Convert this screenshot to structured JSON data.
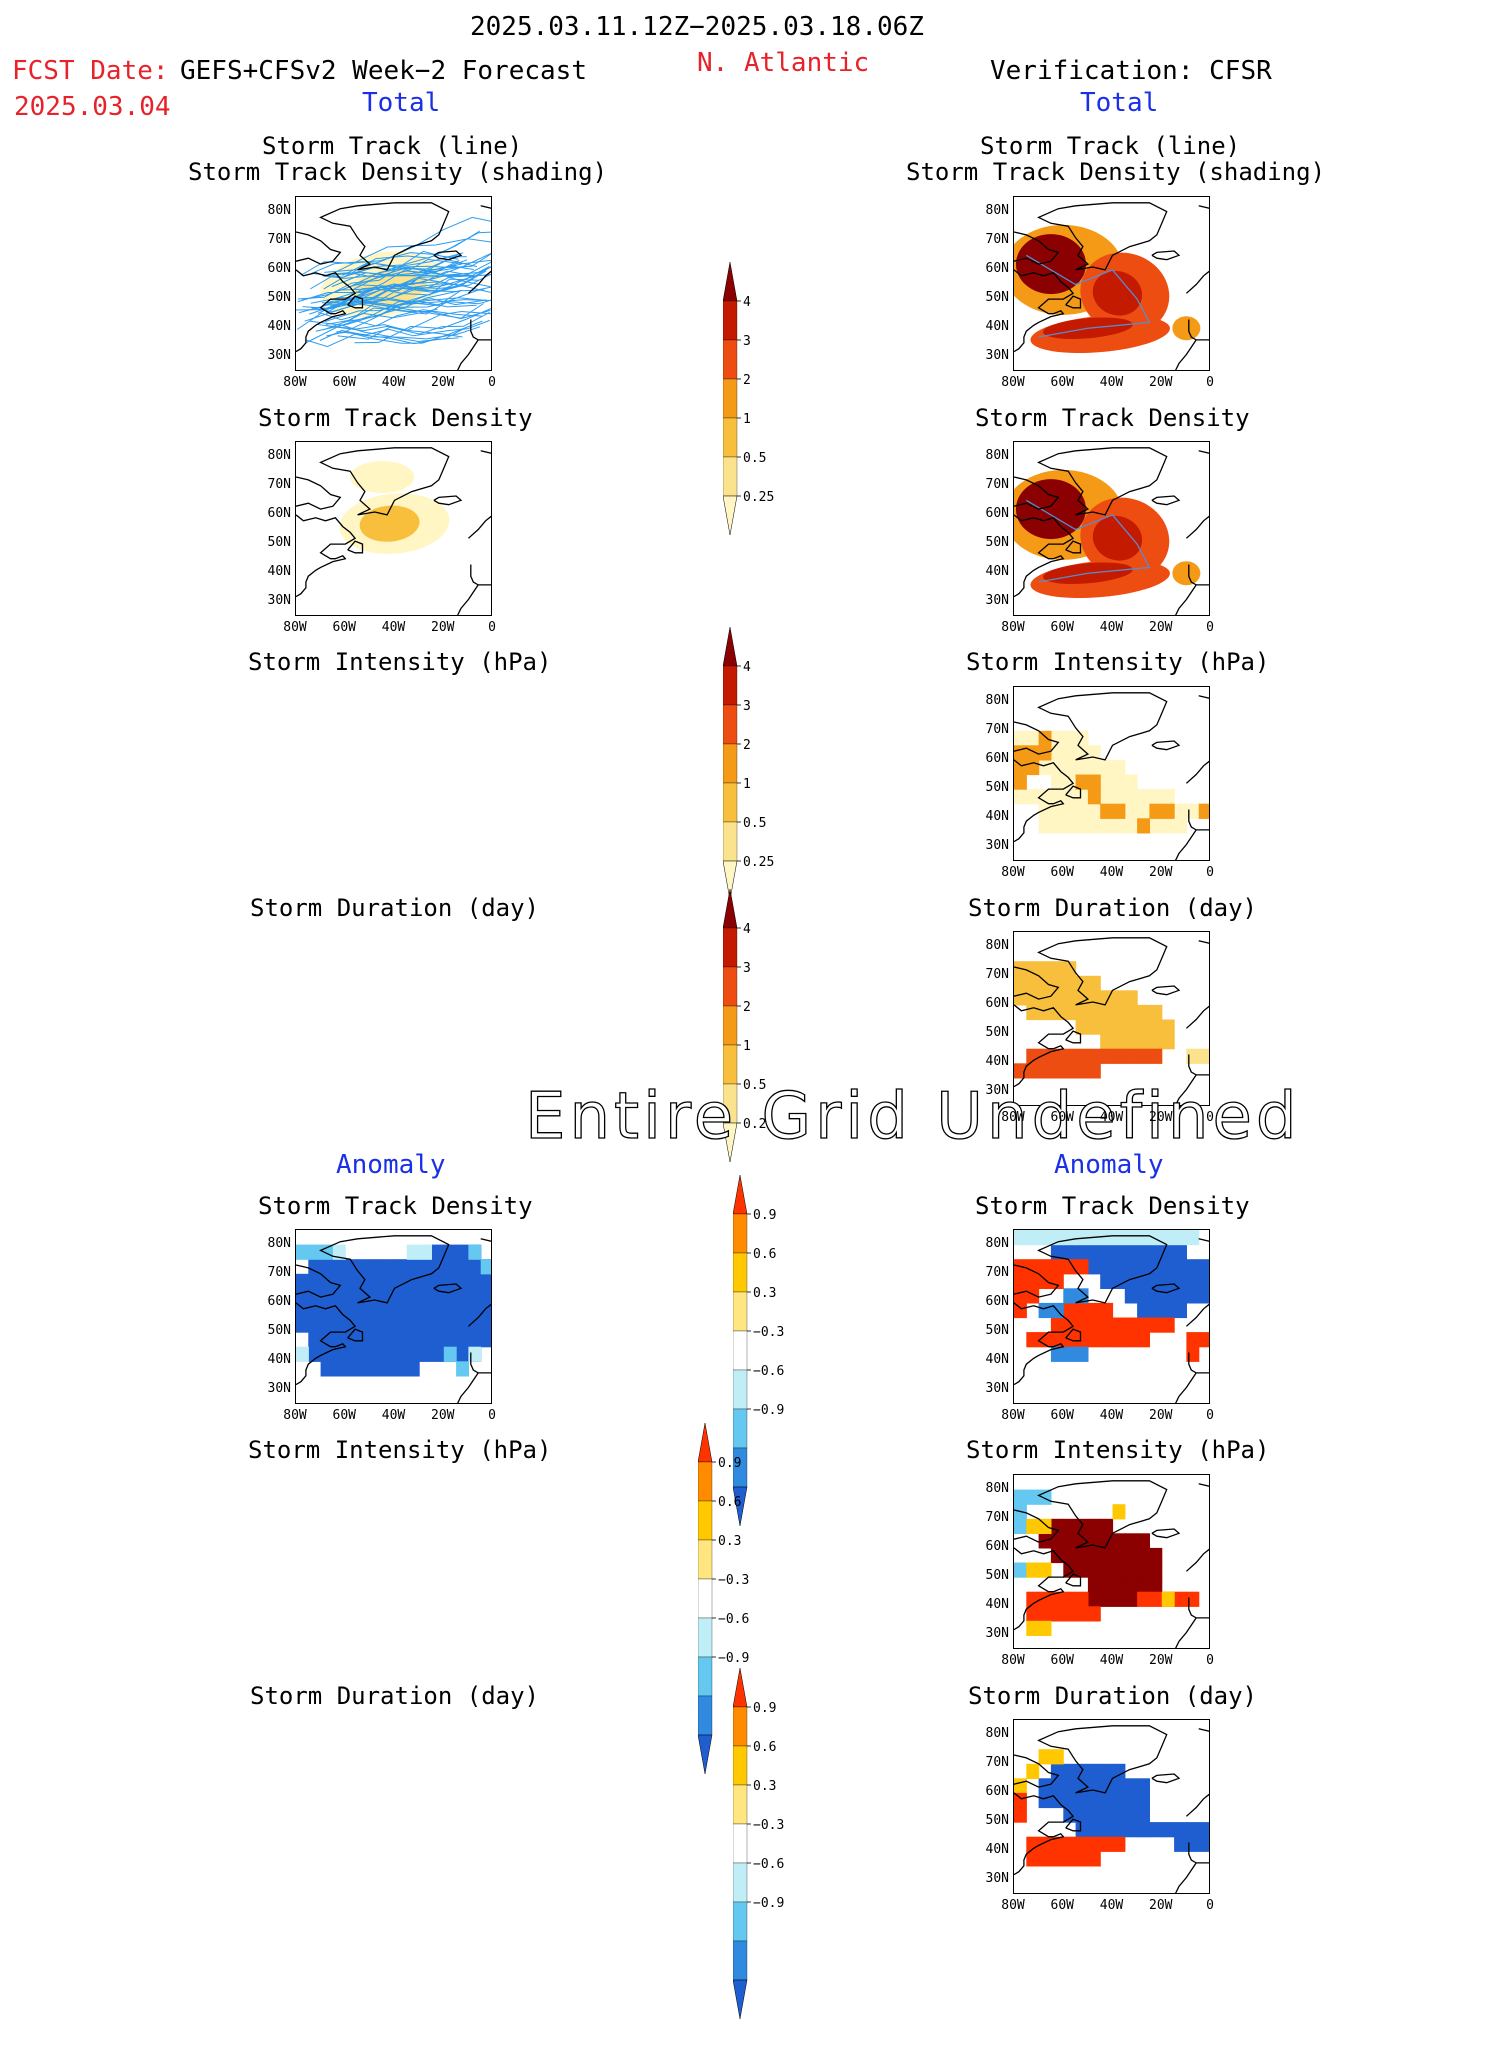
{
  "header": {
    "date_range": "2025.03.11.12Z−2025.03.18.06Z",
    "fcst_label": "FCST Date:",
    "forecast_name": "GEFS+CFSv2 Week−2 Forecast",
    "fcst_date": "2025.03.04",
    "region": "N. Atlantic",
    "verification": "Verification: CFSR"
  },
  "sections": {
    "total": "Total",
    "anomaly": "Anomaly"
  },
  "panel_titles": {
    "track_line": "Storm Track (line)",
    "track_density_shading": "Storm Track Density (shading)",
    "track_density": "Storm Track Density",
    "intensity": "Storm Intensity (hPa)",
    "duration": "Storm Duration (day)"
  },
  "axes": {
    "lat_ticks": [
      "80N",
      "70N",
      "60N",
      "50N",
      "40N",
      "30N"
    ],
    "lon_ticks": [
      "80W",
      "60W",
      "40W",
      "20W",
      "0"
    ]
  },
  "total_colorbar": {
    "labels": [
      "4",
      "3",
      "2",
      "1",
      "0.5",
      "0.25"
    ],
    "colors": [
      "#8b0000",
      "#c41a00",
      "#ee4d12",
      "#f49a16",
      "#f7bf3c",
      "#fae38c",
      "#fff6c4"
    ]
  },
  "anomaly_colorbar": {
    "labels": [
      "0.9",
      "0.6",
      "0.3",
      "−0.3",
      "−0.6",
      "−0.9"
    ],
    "colors": [
      "#ff3300",
      "#ff8c00",
      "#ffc800",
      "#ffe680",
      "#ffffff",
      "#bfeef7",
      "#64c8f0",
      "#2f8ae0",
      "#1e5ed0"
    ]
  },
  "overlay_text": "Entire Grid Undefined",
  "colors": {
    "header_red": "#e8222a",
    "header_blue": "#1a30e6",
    "track_line": "#2d9cf0",
    "anomaly_neg": "#2166d6",
    "anomaly_pos": "#ff3300"
  }
}
